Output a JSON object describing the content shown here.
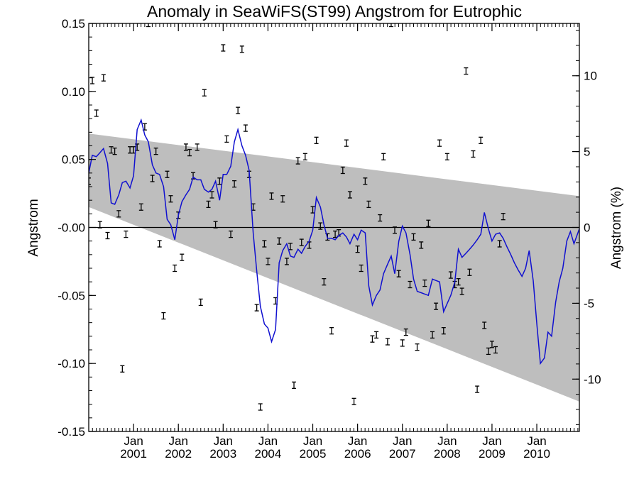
{
  "chart_data": {
    "type": "line",
    "title": "Anomaly in SeaWiFS(ST99) Angstrom for Eutrophic",
    "ylabel": "Angstrom",
    "ylabel_right": "Angstrom (%)",
    "xlim": [
      2000.0,
      2010.95
    ],
    "ylim": [
      -0.15,
      0.15
    ],
    "ylim_right": [
      -13.45,
      13.45
    ],
    "grid": false,
    "x_ticks": [
      {
        "x": 2001.0,
        "month": "Jan",
        "year": "2001"
      },
      {
        "x": 2002.0,
        "month": "Jan",
        "year": "2002"
      },
      {
        "x": 2003.0,
        "month": "Jan",
        "year": "2003"
      },
      {
        "x": 2004.0,
        "month": "Jan",
        "year": "2004"
      },
      {
        "x": 2005.0,
        "month": "Jan",
        "year": "2005"
      },
      {
        "x": 2006.0,
        "month": "Jan",
        "year": "2006"
      },
      {
        "x": 2007.0,
        "month": "Jan",
        "year": "2007"
      },
      {
        "x": 2008.0,
        "month": "Jan",
        "year": "2008"
      },
      {
        "x": 2009.0,
        "month": "Jan",
        "year": "2009"
      },
      {
        "x": 2010.0,
        "month": "Jan",
        "year": "2010"
      }
    ],
    "y_ticks_left": [
      {
        "v": 0.15,
        "label": "0.15"
      },
      {
        "v": 0.1,
        "label": "0.10"
      },
      {
        "v": 0.05,
        "label": "0.05"
      },
      {
        "v": 0.0,
        "label": "-0.00"
      },
      {
        "v": -0.05,
        "label": "-0.05"
      },
      {
        "v": -0.1,
        "label": "-0.10"
      },
      {
        "v": -0.15,
        "label": "-0.15"
      }
    ],
    "y_ticks_right": [
      {
        "v": 10,
        "label": "10"
      },
      {
        "v": 5,
        "label": "5"
      },
      {
        "v": 0,
        "label": "0"
      },
      {
        "v": -5,
        "label": "-5"
      },
      {
        "v": -10,
        "label": "-10"
      }
    ],
    "band": {
      "x": [
        2000.0,
        2010.95
      ],
      "upper": [
        0.069,
        0.023
      ],
      "lower": [
        0.015,
        -0.128
      ]
    },
    "zero_line": 0.0,
    "series": [
      {
        "kind": "line",
        "color": "#1010d0",
        "points": [
          [
            2000.0,
            0.04
          ],
          [
            2000.08,
            0.053
          ],
          [
            2000.17,
            0.052
          ],
          [
            2000.25,
            0.055
          ],
          [
            2000.33,
            0.058
          ],
          [
            2000.42,
            0.047
          ],
          [
            2000.5,
            0.018
          ],
          [
            2000.58,
            0.017
          ],
          [
            2000.67,
            0.024
          ],
          [
            2000.75,
            0.033
          ],
          [
            2000.83,
            0.034
          ],
          [
            2000.92,
            0.029
          ],
          [
            2001.0,
            0.038
          ],
          [
            2001.08,
            0.072
          ],
          [
            2001.17,
            0.079
          ],
          [
            2001.25,
            0.068
          ],
          [
            2001.33,
            0.063
          ],
          [
            2001.42,
            0.046
          ],
          [
            2001.5,
            0.04
          ],
          [
            2001.58,
            0.039
          ],
          [
            2001.67,
            0.03
          ],
          [
            2001.75,
            0.006
          ],
          [
            2001.83,
            0.002
          ],
          [
            2001.92,
            -0.009
          ],
          [
            2002.0,
            0.009
          ],
          [
            2002.08,
            0.019
          ],
          [
            2002.17,
            0.024
          ],
          [
            2002.25,
            0.028
          ],
          [
            2002.33,
            0.037
          ],
          [
            2002.42,
            0.035
          ],
          [
            2002.5,
            0.035
          ],
          [
            2002.58,
            0.028
          ],
          [
            2002.67,
            0.026
          ],
          [
            2002.75,
            0.028
          ],
          [
            2002.83,
            0.034
          ],
          [
            2002.92,
            0.02
          ],
          [
            2003.0,
            0.039
          ],
          [
            2003.08,
            0.039
          ],
          [
            2003.17,
            0.045
          ],
          [
            2003.25,
            0.063
          ],
          [
            2003.33,
            0.072
          ],
          [
            2003.42,
            0.06
          ],
          [
            2003.5,
            0.053
          ],
          [
            2003.58,
            0.042
          ],
          [
            2003.67,
            -0.004
          ],
          [
            2003.75,
            -0.032
          ],
          [
            2003.83,
            -0.058
          ],
          [
            2003.92,
            -0.071
          ],
          [
            2004.0,
            -0.074
          ],
          [
            2004.08,
            -0.084
          ],
          [
            2004.17,
            -0.075
          ],
          [
            2004.25,
            -0.026
          ],
          [
            2004.33,
            -0.017
          ],
          [
            2004.42,
            -0.012
          ],
          [
            2004.5,
            -0.021
          ],
          [
            2004.58,
            -0.022
          ],
          [
            2004.67,
            -0.016
          ],
          [
            2004.75,
            -0.019
          ],
          [
            2004.83,
            -0.014
          ],
          [
            2004.92,
            -0.01
          ],
          [
            2005.0,
            -0.002
          ],
          [
            2005.08,
            0.022
          ],
          [
            2005.17,
            0.015
          ],
          [
            2005.25,
            0.002
          ],
          [
            2005.33,
            -0.008
          ],
          [
            2005.42,
            -0.008
          ],
          [
            2005.5,
            -0.009
          ],
          [
            2005.58,
            -0.006
          ],
          [
            2005.67,
            -0.004
          ],
          [
            2005.75,
            -0.007
          ],
          [
            2005.83,
            -0.012
          ],
          [
            2005.92,
            -0.005
          ],
          [
            2006.0,
            -0.009
          ],
          [
            2006.08,
            -0.002
          ],
          [
            2006.17,
            -0.004
          ],
          [
            2006.25,
            -0.043
          ],
          [
            2006.33,
            -0.057
          ],
          [
            2006.42,
            -0.05
          ],
          [
            2006.5,
            -0.046
          ],
          [
            2006.58,
            -0.034
          ],
          [
            2006.67,
            -0.027
          ],
          [
            2006.75,
            -0.021
          ],
          [
            2006.83,
            -0.034
          ],
          [
            2006.92,
            -0.01
          ],
          [
            2007.0,
            0.001
          ],
          [
            2007.08,
            -0.004
          ],
          [
            2007.17,
            -0.02
          ],
          [
            2007.25,
            -0.038
          ],
          [
            2007.33,
            -0.047
          ],
          [
            2007.42,
            -0.048
          ],
          [
            2007.5,
            -0.049
          ],
          [
            2007.58,
            -0.05
          ],
          [
            2007.67,
            -0.038
          ],
          [
            2007.75,
            -0.039
          ],
          [
            2007.83,
            -0.04
          ],
          [
            2007.92,
            -0.062
          ],
          [
            2008.0,
            -0.056
          ],
          [
            2008.08,
            -0.05
          ],
          [
            2008.17,
            -0.04
          ],
          [
            2008.25,
            -0.016
          ],
          [
            2008.33,
            -0.022
          ],
          [
            2008.42,
            -0.019
          ],
          [
            2008.5,
            -0.016
          ],
          [
            2008.58,
            -0.013
          ],
          [
            2008.67,
            -0.009
          ],
          [
            2008.75,
            -0.005
          ],
          [
            2008.83,
            0.011
          ],
          [
            2008.92,
            -0.001
          ],
          [
            2009.0,
            -0.01
          ],
          [
            2009.08,
            -0.005
          ],
          [
            2009.17,
            -0.004
          ],
          [
            2009.25,
            -0.008
          ],
          [
            2009.33,
            -0.014
          ],
          [
            2009.42,
            -0.02
          ],
          [
            2009.5,
            -0.026
          ],
          [
            2009.58,
            -0.031
          ],
          [
            2009.67,
            -0.036
          ],
          [
            2009.75,
            -0.03
          ],
          [
            2009.83,
            -0.017
          ],
          [
            2009.92,
            -0.039
          ],
          [
            2010.0,
            -0.071
          ],
          [
            2010.08,
            -0.1
          ],
          [
            2010.17,
            -0.096
          ],
          [
            2010.25,
            -0.077
          ],
          [
            2010.33,
            -0.08
          ],
          [
            2010.42,
            -0.055
          ],
          [
            2010.5,
            -0.04
          ],
          [
            2010.58,
            -0.03
          ],
          [
            2010.67,
            -0.01
          ],
          [
            2010.75,
            -0.003
          ],
          [
            2010.83,
            -0.012
          ],
          [
            2010.95,
            -0.001
          ]
        ]
      },
      {
        "kind": "errorbar",
        "color": "#000000",
        "points": [
          [
            2000.0,
            0.034
          ],
          [
            2000.08,
            0.108
          ],
          [
            2000.17,
            0.084
          ],
          [
            2000.25,
            0.002
          ],
          [
            2000.33,
            0.11
          ],
          [
            2000.42,
            -0.006
          ],
          [
            2000.5,
            0.057
          ],
          [
            2000.58,
            0.056
          ],
          [
            2000.67,
            0.01
          ],
          [
            2000.75,
            -0.104
          ],
          [
            2000.83,
            -0.005
          ],
          [
            2000.92,
            0.057
          ],
          [
            2001.0,
            0.057
          ],
          [
            2001.08,
            0.059
          ],
          [
            2001.17,
            0.015
          ],
          [
            2001.25,
            0.074
          ],
          [
            2001.33,
            0.15
          ],
          [
            2001.42,
            0.036
          ],
          [
            2001.5,
            0.056
          ],
          [
            2001.58,
            -0.012
          ],
          [
            2001.67,
            -0.065
          ],
          [
            2001.75,
            0.039
          ],
          [
            2001.83,
            0.021
          ],
          [
            2001.92,
            -0.03
          ],
          [
            2002.0,
            0.009
          ],
          [
            2002.08,
            -0.022
          ],
          [
            2002.17,
            0.059
          ],
          [
            2002.25,
            0.055
          ],
          [
            2002.33,
            0.038
          ],
          [
            2002.42,
            0.059
          ],
          [
            2002.5,
            -0.055
          ],
          [
            2002.58,
            0.099
          ],
          [
            2002.67,
            0.017
          ],
          [
            2002.75,
            0.024
          ],
          [
            2002.83,
            0.002
          ],
          [
            2002.92,
            0.034
          ],
          [
            2003.0,
            0.132
          ],
          [
            2003.08,
            0.065
          ],
          [
            2003.17,
            -0.005
          ],
          [
            2003.25,
            0.032
          ],
          [
            2003.33,
            0.086
          ],
          [
            2003.42,
            0.131
          ],
          [
            2003.5,
            0.073
          ],
          [
            2003.58,
            0.039
          ],
          [
            2003.67,
            0.015
          ],
          [
            2003.75,
            -0.059
          ],
          [
            2003.83,
            -0.132
          ],
          [
            2003.92,
            -0.012
          ],
          [
            2004.0,
            -0.025
          ],
          [
            2004.08,
            0.023
          ],
          [
            2004.17,
            -0.054
          ],
          [
            2004.25,
            -0.01
          ],
          [
            2004.33,
            0.021
          ],
          [
            2004.42,
            -0.025
          ],
          [
            2004.5,
            -0.014
          ],
          [
            2004.58,
            -0.116
          ],
          [
            2004.67,
            0.049
          ],
          [
            2004.75,
            -0.011
          ],
          [
            2004.83,
            0.052
          ],
          [
            2004.92,
            -0.013
          ],
          [
            2005.0,
            0.013
          ],
          [
            2005.08,
            0.064
          ],
          [
            2005.17,
            0.001
          ],
          [
            2005.25,
            -0.04
          ],
          [
            2005.33,
            -0.007
          ],
          [
            2005.42,
            -0.076
          ],
          [
            2005.5,
            -0.005
          ],
          [
            2005.58,
            -0.004
          ],
          [
            2005.67,
            0.042
          ],
          [
            2005.75,
            0.062
          ],
          [
            2005.83,
            0.024
          ],
          [
            2005.92,
            -0.128
          ],
          [
            2006.0,
            -0.016
          ],
          [
            2006.08,
            -0.03
          ],
          [
            2006.17,
            0.034
          ],
          [
            2006.25,
            0.017
          ],
          [
            2006.33,
            -0.082
          ],
          [
            2006.42,
            -0.079
          ],
          [
            2006.5,
            0.007
          ],
          [
            2006.58,
            0.052
          ],
          [
            2006.67,
            -0.084
          ],
          [
            2006.75,
            0.15
          ],
          [
            2006.83,
            -0.002
          ],
          [
            2006.92,
            -0.034
          ],
          [
            2007.0,
            -0.085
          ],
          [
            2007.08,
            -0.077
          ],
          [
            2007.17,
            -0.042
          ],
          [
            2007.25,
            -0.007
          ],
          [
            2007.33,
            -0.088
          ],
          [
            2007.42,
            -0.013
          ],
          [
            2007.5,
            -0.041
          ],
          [
            2007.58,
            0.003
          ],
          [
            2007.67,
            -0.079
          ],
          [
            2007.75,
            -0.058
          ],
          [
            2007.83,
            0.062
          ],
          [
            2007.92,
            -0.076
          ],
          [
            2008.0,
            0.052
          ],
          [
            2008.08,
            -0.035
          ],
          [
            2008.17,
            -0.042
          ],
          [
            2008.25,
            -0.04
          ],
          [
            2008.33,
            -0.047
          ],
          [
            2008.42,
            0.115
          ],
          [
            2008.5,
            -0.033
          ],
          [
            2008.58,
            0.054
          ],
          [
            2008.67,
            -0.119
          ],
          [
            2008.75,
            0.064
          ],
          [
            2008.83,
            -0.072
          ],
          [
            2008.92,
            -0.091
          ],
          [
            2009.0,
            -0.086
          ],
          [
            2009.08,
            -0.09
          ],
          [
            2009.17,
            -0.012
          ],
          [
            2009.25,
            0.008
          ]
        ]
      }
    ]
  }
}
